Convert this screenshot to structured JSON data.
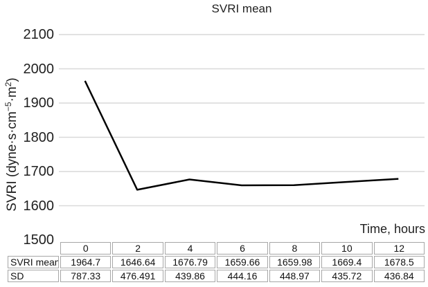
{
  "chart_data": {
    "type": "line",
    "title": "SVRI mean",
    "xlabel": "Time, hours",
    "ylabel": "SVRI (dyne·s·cm−5·m2)",
    "ylabel_parts": [
      {
        "t": "SVRI (dyne·s·cm"
      },
      {
        "t": "−5",
        "sup": true
      },
      {
        "t": "·m"
      },
      {
        "t": "2",
        "sup": true
      },
      {
        "t": ")"
      }
    ],
    "x": [
      0,
      2,
      4,
      6,
      8,
      10,
      12
    ],
    "series": [
      {
        "name": "SVRI mean",
        "values": [
          1964.7,
          1646.64,
          1676.79,
          1659.66,
          1659.98,
          1669.4,
          1678.5
        ]
      },
      {
        "name": "SD",
        "values": [
          787.33,
          476.491,
          439.86,
          444.16,
          448.97,
          435.72,
          436.84
        ]
      }
    ],
    "plotted_series": "SVRI mean",
    "ylim": [
      1500,
      2100
    ],
    "yticks": [
      2100,
      2000,
      1900,
      1800,
      1700,
      1600,
      1500
    ],
    "grid": "horizontal",
    "legend": "none"
  },
  "table": {
    "header": [
      "0",
      "2",
      "4",
      "6",
      "8",
      "10",
      "12"
    ],
    "rows": [
      {
        "label": "SVRI mean",
        "values": [
          "1964.7",
          "1646.64",
          "1676.79",
          "1659.66",
          "1659.98",
          "1669.4",
          "1678.5"
        ]
      },
      {
        "label": "SD",
        "values": [
          "787.33",
          "476.491",
          "439.86",
          "444.16",
          "448.97",
          "435.72",
          "436.84"
        ]
      }
    ]
  },
  "colors": {
    "line": "#000000",
    "grid": "#d9d9d9",
    "table_border": "#a6a6a6",
    "text": "#1f1f1f"
  }
}
